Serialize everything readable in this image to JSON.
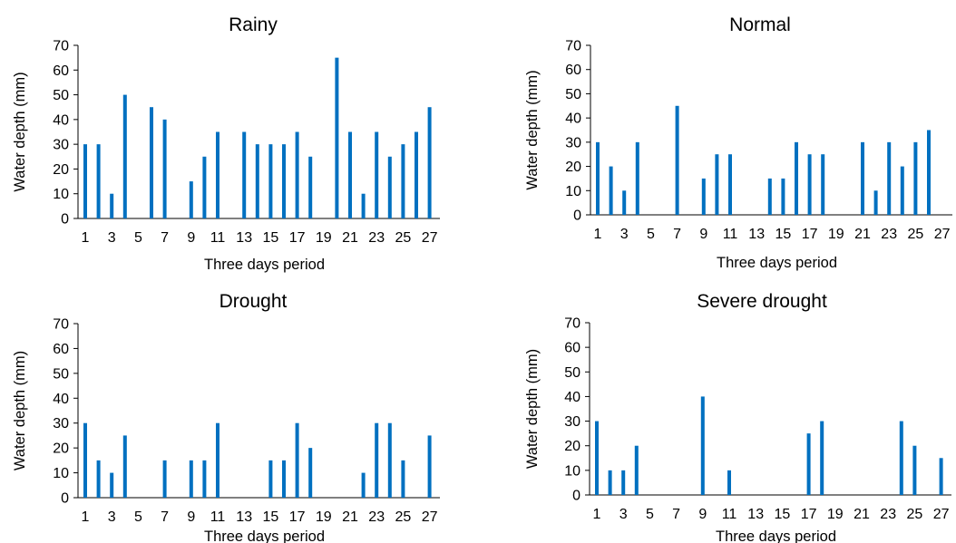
{
  "chart_data": [
    {
      "type": "bar",
      "title": "Rainy",
      "xlabel": "Three days period",
      "ylabel": "Water depth (mm)",
      "ylim": [
        0,
        70
      ],
      "yticks": [
        "0",
        "10",
        "20",
        "30",
        "40",
        "50",
        "60",
        "70"
      ],
      "xtick_labels": [
        "1",
        "3",
        "5",
        "7",
        "9",
        "11",
        "13",
        "15",
        "17",
        "19",
        "21",
        "23",
        "25",
        "27"
      ],
      "grid": false,
      "bar_color": "#0070C0",
      "categories": [
        1,
        2,
        3,
        4,
        5,
        6,
        7,
        8,
        9,
        10,
        11,
        12,
        13,
        14,
        15,
        16,
        17,
        18,
        19,
        20,
        21,
        22,
        23,
        24,
        25,
        26,
        27
      ],
      "values": [
        30,
        30,
        10,
        50,
        0,
        45,
        40,
        0,
        15,
        25,
        35,
        0,
        35,
        30,
        30,
        30,
        35,
        25,
        0,
        65,
        35,
        10,
        35,
        25,
        30,
        35,
        45
      ]
    },
    {
      "type": "bar",
      "title": "Normal",
      "xlabel": "Three days period",
      "ylabel": "Water depth (mm)",
      "ylim": [
        0,
        70
      ],
      "yticks": [
        "0",
        "10",
        "20",
        "30",
        "40",
        "50",
        "60",
        "70"
      ],
      "xtick_labels": [
        "1",
        "3",
        "5",
        "7",
        "9",
        "11",
        "13",
        "15",
        "17",
        "19",
        "21",
        "23",
        "25",
        "27"
      ],
      "grid": false,
      "bar_color": "#0070C0",
      "categories": [
        1,
        2,
        3,
        4,
        5,
        6,
        7,
        8,
        9,
        10,
        11,
        12,
        13,
        14,
        15,
        16,
        17,
        18,
        19,
        20,
        21,
        22,
        23,
        24,
        25,
        26,
        27
      ],
      "values": [
        30,
        20,
        10,
        30,
        0,
        0,
        45,
        0,
        15,
        25,
        25,
        0,
        0,
        15,
        15,
        30,
        25,
        25,
        0,
        0,
        30,
        10,
        30,
        20,
        30,
        35,
        0
      ]
    },
    {
      "type": "bar",
      "title": "Drought",
      "xlabel": "Three days period",
      "ylabel": "Water depth (mm)",
      "ylim": [
        0,
        70
      ],
      "yticks": [
        "0",
        "10",
        "20",
        "30",
        "40",
        "50",
        "60",
        "70"
      ],
      "xtick_labels": [
        "1",
        "3",
        "5",
        "7",
        "9",
        "11",
        "13",
        "15",
        "17",
        "19",
        "21",
        "23",
        "25",
        "27"
      ],
      "grid": false,
      "bar_color": "#0070C0",
      "categories": [
        1,
        2,
        3,
        4,
        5,
        6,
        7,
        8,
        9,
        10,
        11,
        12,
        13,
        14,
        15,
        16,
        17,
        18,
        19,
        20,
        21,
        22,
        23,
        24,
        25,
        26,
        27
      ],
      "values": [
        30,
        15,
        10,
        25,
        0,
        0,
        15,
        0,
        15,
        15,
        30,
        0,
        0,
        0,
        15,
        15,
        30,
        20,
        0,
        0,
        0,
        10,
        30,
        30,
        15,
        0,
        25
      ]
    },
    {
      "type": "bar",
      "title": "Severe drought",
      "xlabel": "Three days period",
      "ylabel": "Water depth (mm)",
      "ylim": [
        0,
        70
      ],
      "yticks": [
        "0",
        "10",
        "20",
        "30",
        "40",
        "50",
        "60",
        "70"
      ],
      "xtick_labels": [
        "1",
        "3",
        "5",
        "7",
        "9",
        "11",
        "13",
        "15",
        "17",
        "19",
        "21",
        "23",
        "25",
        "27"
      ],
      "grid": false,
      "bar_color": "#0070C0",
      "categories": [
        1,
        2,
        3,
        4,
        5,
        6,
        7,
        8,
        9,
        10,
        11,
        12,
        13,
        14,
        15,
        16,
        17,
        18,
        19,
        20,
        21,
        22,
        23,
        24,
        25,
        26,
        27
      ],
      "values": [
        30,
        10,
        10,
        20,
        0,
        0,
        0,
        0,
        40,
        0,
        10,
        0,
        0,
        0,
        0,
        0,
        25,
        30,
        0,
        0,
        0,
        0,
        0,
        30,
        20,
        0,
        15
      ]
    }
  ]
}
